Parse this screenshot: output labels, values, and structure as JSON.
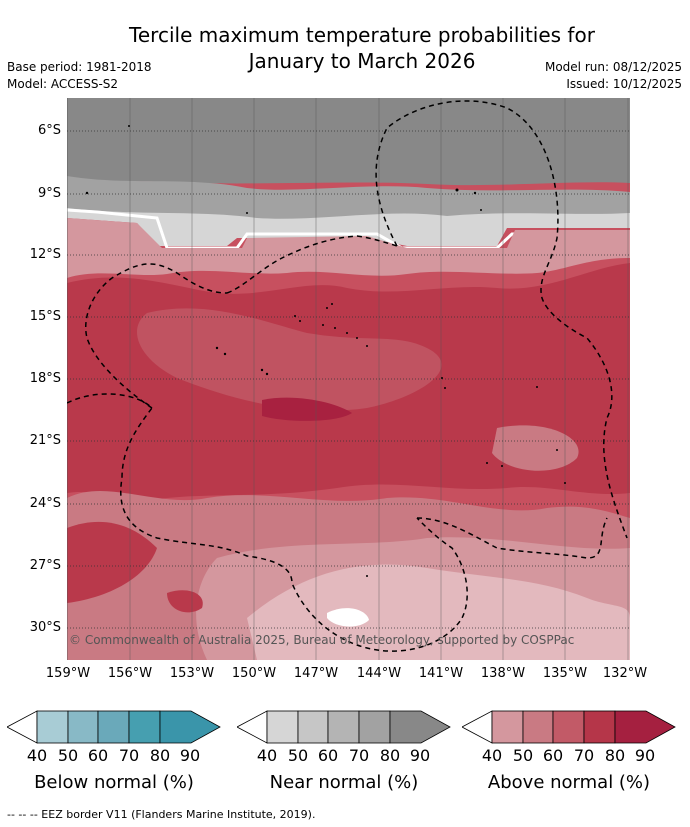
{
  "header": {
    "title_line1": "Tercile maximum temperature probabilities for",
    "title_line2": "January to March 2026",
    "base_period": "Base period: 1981-2018",
    "model": "Model: ACCESS-S2",
    "model_run": "Model run: 08/12/2025",
    "issued": "Issued: 10/12/2025"
  },
  "map": {
    "lat_labels": [
      "6°S",
      "9°S",
      "12°S",
      "15°S",
      "18°S",
      "21°S",
      "24°S",
      "27°S",
      "30°S"
    ],
    "lon_labels": [
      "159°W",
      "156°W",
      "153°W",
      "150°W",
      "147°W",
      "144°W",
      "141°W",
      "138°W",
      "135°W",
      "132°W"
    ],
    "copyright": "© Commonwealth of Australia 2025, Bureau of Meteorology, supported by COSPPac"
  },
  "legends": [
    {
      "title": "Below normal (%)",
      "ticks": [
        "40",
        "50",
        "60",
        "70",
        "80",
        "90"
      ],
      "colors": [
        "#cbe3ea",
        "#a8ccd5",
        "#88b9c6",
        "#6aa9ba",
        "#469fb0",
        "#3a95aa"
      ]
    },
    {
      "title": "Near normal (%)",
      "ticks": [
        "40",
        "50",
        "60",
        "70",
        "80",
        "90"
      ],
      "colors": [
        "#e4e4e4",
        "#d6d6d6",
        "#c6c6c6",
        "#b4b4b4",
        "#a2a2a2",
        "#888888"
      ]
    },
    {
      "title": "Above normal (%)",
      "ticks": [
        "40",
        "50",
        "60",
        "70",
        "80",
        "90"
      ],
      "colors": [
        "#e3b9be",
        "#d4979e",
        "#c97a83",
        "#c25a67",
        "#b53649",
        "#a52040"
      ]
    }
  ],
  "footer": "-- -- -- EEZ border V11 (Flanders Marine Institute, 2019)."
}
